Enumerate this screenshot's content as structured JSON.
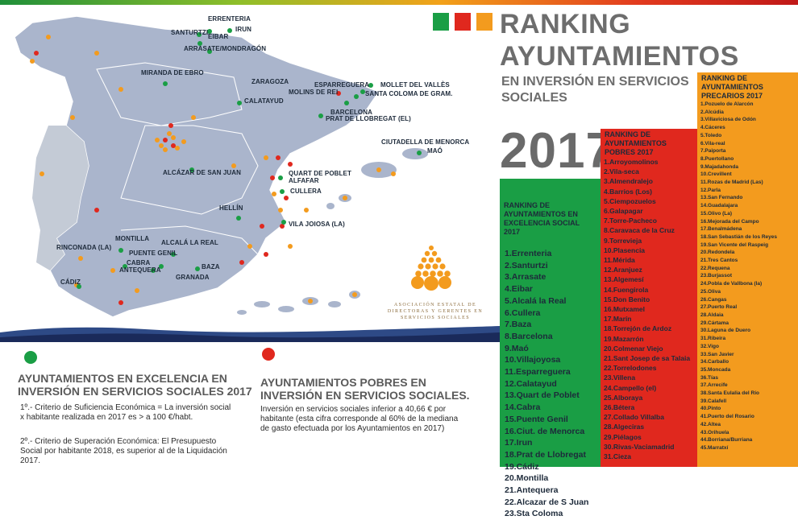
{
  "colors": {
    "green": "#1a9e45",
    "red": "#e0281e",
    "orange": "#f39b1e",
    "map": "#aab5cc",
    "title": "#6d6d6d"
  },
  "title": {
    "line1": "RANKING",
    "line2": "AYUNTAMIENTOS",
    "subtitle": "EN INVERSIÓN EN SERVICIOS SOCIALES",
    "year": "2017"
  },
  "map": {
    "cities": [
      "ERRENTERIA",
      "SANTURTZI",
      "IRUN",
      "EIBAR",
      "ARRASATE/MONDRAGÓN",
      "MIRANDA DE EBRO",
      "ZARAGOZA",
      "ESPARREGUERA",
      "MOLLET DEL VALLÈS",
      "MOLINS DE REI",
      "SANTA COLOMA DE GRAM.",
      "CALATAYUD",
      "BARCELONA",
      "PRAT DE LLOBREGAT (EL)",
      "CIUTADELLA DE MENORCA",
      "MAÓ",
      "ALCÁZAR DE SAN JUAN",
      "QUART DE POBLET",
      "ALFAFAR",
      "CULLERA",
      "HELLÍN",
      "VILA JOIOSA (LA)",
      "RINCONADA (LA)",
      "MONTILLA",
      "ALCALÁ LA REAL",
      "PUENTE GENIL",
      "CABRA",
      "BAZA",
      "ANTEQUERA",
      "GRANADA",
      "CÁDIZ"
    ]
  },
  "logo": {
    "line1": "ASOCIACIÓN ESTATAL DE",
    "line2": "DIRECTORAS Y GERENTES EN",
    "line3": "SERVICIOS SOCIALES"
  },
  "green": {
    "heading": "RANKING DE AYUNTAMIENTOS EN EXCELENCIA SOCIAL 2017",
    "items": [
      "1.Errenteria",
      "2.Santurtzi",
      "3.Arrasate",
      "4.Eibar",
      "5.Alcalá la Real",
      "6.Cullera",
      "7.Baza",
      "8.Barcelona",
      "9.Maó",
      "10.Villajoyosa",
      "11.Esparreguera",
      "12.Calatayud",
      "13.Quart de Poblet",
      "14.Cabra",
      "15.Puente Genil",
      "16.Ciut. de Menorca",
      "17.Irun",
      "18.Prat de Llobregat",
      "19.Cádiz",
      "20.Montilla",
      "21.Antequera",
      "22.Alcazar de S Juan",
      "23.Sta Coloma"
    ]
  },
  "red": {
    "heading": "RANKING DE AYUNTAMIENTOS POBRES 2017",
    "items": [
      "1.Arroyomolinos",
      "2.Vila-seca",
      "3.Almendralejo",
      "4.Barrios (Los)",
      "5.Ciempozuelos",
      "6.Galapagar",
      "7.Torre-Pacheco",
      "8.Caravaca de la Cruz",
      "9.Torrevieja",
      "10.Plasencia",
      "11.Mérida",
      "12.Aranjuez",
      "13.Algemesí",
      "14.Fuengirola",
      "15.Don Benito",
      "16.Mutxamel",
      "17.Marín",
      "18.Torrejón de Ardoz",
      "19.Mazarrón",
      "20.Colmenar Viejo",
      "21.Sant Josep de sa Talaia",
      "22.Torrelodones",
      "23.Villena",
      "24.Campello (el)",
      "25.Alboraya",
      "26.Bétera",
      "27.Collado Villalba",
      "28.Algeciras",
      "29.Piélagos",
      "30.Rivas-Vaciamadrid",
      "31.Cieza"
    ]
  },
  "orange": {
    "heading": "RANKING DE AYUNTAMIENTOS PRECARIOS 2017",
    "items": [
      "1.Pozuelo de Alarcón",
      "2.Alcúdia",
      "3.Villaviciosa de Odón",
      "4.Cáceres",
      "5.Toledo",
      "6.Vila-real",
      "7.Paiporta",
      "8.Puertollano",
      "9.Majadahonda",
      "10.Crevillent",
      "11.Rozas de Madrid (Las)",
      "12.Parla",
      "13.San Fernando",
      "14.Guadalajara",
      "15.Olivo (La)",
      "16.Mejorada del Campo",
      "17.Benalmádena",
      "18.San Sebastián de los Reyes",
      "19.San Vicente del Raspeig",
      "20.Redondela",
      "21.Tres Cantos",
      "22.Requena",
      "23.Burjassot",
      "24.Pobla de Vallbona (la)",
      "25.Oliva",
      "26.Cangas",
      "27.Puerto Real",
      "28.Aldaia",
      "29.Cártama",
      "30.Laguna de Duero",
      "31.Ribeira",
      "32.Vigo",
      "33.San Javier",
      "34.Carballo",
      "35.Moncada",
      "36.Tías",
      "37.Arrecife",
      "38.Santa Eulalia del Río",
      "39.Calafell",
      "40.Pinto",
      "41.Puerto del Rosario",
      "42.Altea",
      "43.Orihuela",
      "44.Borriana/Burriana",
      "45.Marratxí"
    ]
  },
  "excellence": {
    "title1": "AYUNTAMIENTOS EN EXCELENCIA EN",
    "title2": "INVERSIÓN EN SERVICIOS SOCIALES 2017",
    "c1a": "1º.-  Criterio de Suficiencia Económica = La inversión social",
    "c1b": "x habitante realizada en 2017 es  > a 100 €/habt.",
    "c2a": "2º.-   Criterio de Superación Económica:   El Presupuesto",
    "c2b": "Social por habitante 2018, es  superior al de la Liquidación",
    "c2c": "2017."
  },
  "poor": {
    "title1": "AYUNTAMIENTOS POBRES EN",
    "title2": "INVERSIÓN EN SERVICIOS SOCIALES.",
    "t1": "Inversión en servicios sociales  inferior a 40,66 € por",
    "t2": "habitante (esta cifra corresponde al 60% de la mediana",
    "t3": "de gasto efectuada por los Ayuntamientos en 2017)"
  }
}
